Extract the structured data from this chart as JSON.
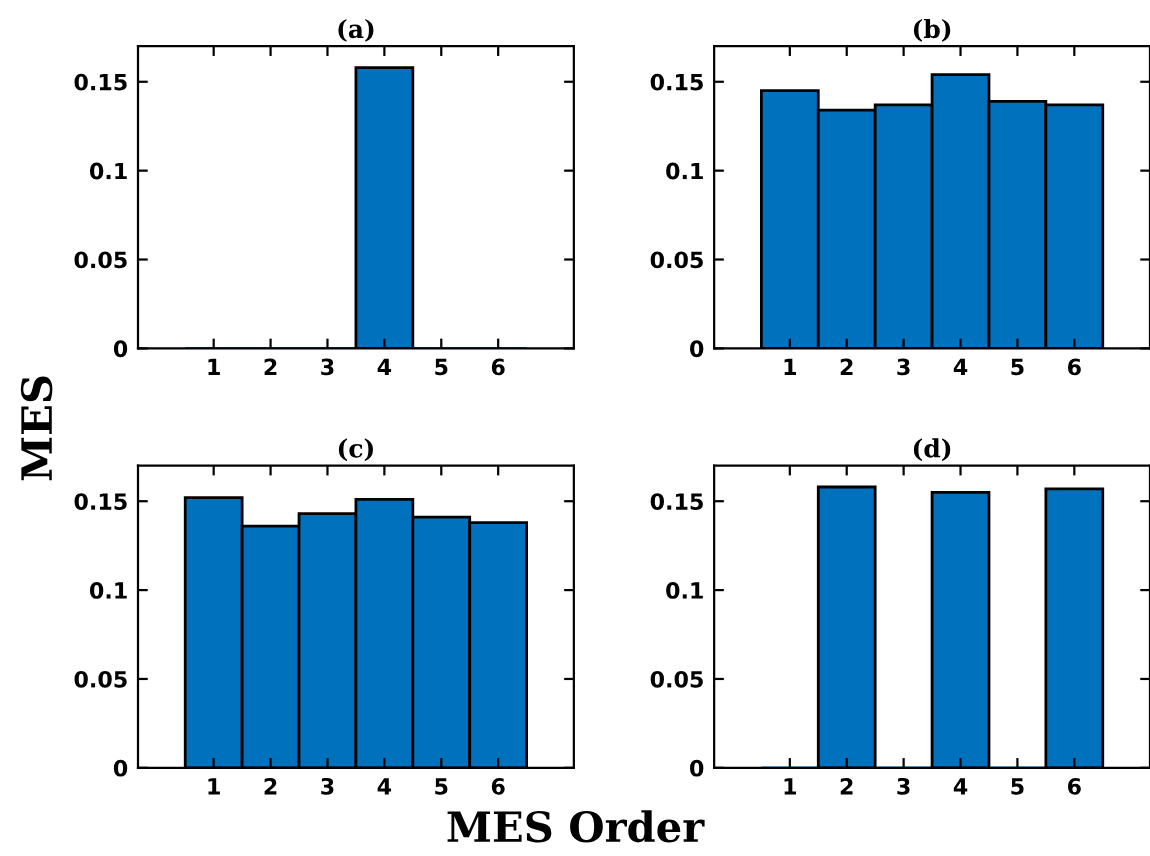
{
  "chart_data": [
    {
      "type": "bar",
      "title": "(a)",
      "ylabel": "MES",
      "xlabel": "MES Order",
      "x": [
        1,
        2,
        3,
        4,
        5,
        6
      ],
      "values": [
        0,
        0,
        0,
        0.158,
        0,
        0
      ],
      "color": "#0072bd",
      "xlim": [
        -0.33,
        7.33
      ],
      "xticks": [
        1,
        2,
        3,
        4,
        5,
        6
      ],
      "ylim": [
        0,
        0.17
      ],
      "yticks": [
        0,
        0.05,
        0.1,
        0.15
      ],
      "grid": false,
      "legend": false
    },
    {
      "type": "bar",
      "title": "(b)",
      "x": [
        1,
        2,
        3,
        4,
        5,
        6
      ],
      "values": [
        0.145,
        0.134,
        0.137,
        0.154,
        0.139,
        0.137
      ],
      "color": "#0072bd",
      "xlim": [
        -0.33,
        7.33
      ],
      "xticks": [
        1,
        2,
        3,
        4,
        5,
        6
      ],
      "ylim": [
        0,
        0.17
      ],
      "yticks": [
        0,
        0.05,
        0.1,
        0.15
      ],
      "grid": false,
      "legend": false
    },
    {
      "type": "bar",
      "title": "(c)",
      "x": [
        1,
        2,
        3,
        4,
        5,
        6
      ],
      "values": [
        0.152,
        0.136,
        0.143,
        0.151,
        0.141,
        0.138
      ],
      "color": "#0072bd",
      "xlim": [
        -0.33,
        7.33
      ],
      "xticks": [
        1,
        2,
        3,
        4,
        5,
        6
      ],
      "ylim": [
        0,
        0.17
      ],
      "yticks": [
        0,
        0.05,
        0.1,
        0.15
      ],
      "grid": false,
      "legend": false
    },
    {
      "type": "bar",
      "title": "(d)",
      "x": [
        1,
        2,
        3,
        4,
        5,
        6
      ],
      "values": [
        0,
        0.158,
        0,
        0.155,
        0,
        0.157
      ],
      "color": "#0072bd",
      "xlim": [
        -0.33,
        7.33
      ],
      "xticks": [
        1,
        2,
        3,
        4,
        5,
        6
      ],
      "ylim": [
        0,
        0.17
      ],
      "yticks": [
        0,
        0.05,
        0.1,
        0.15
      ],
      "grid": false,
      "legend": false
    }
  ]
}
